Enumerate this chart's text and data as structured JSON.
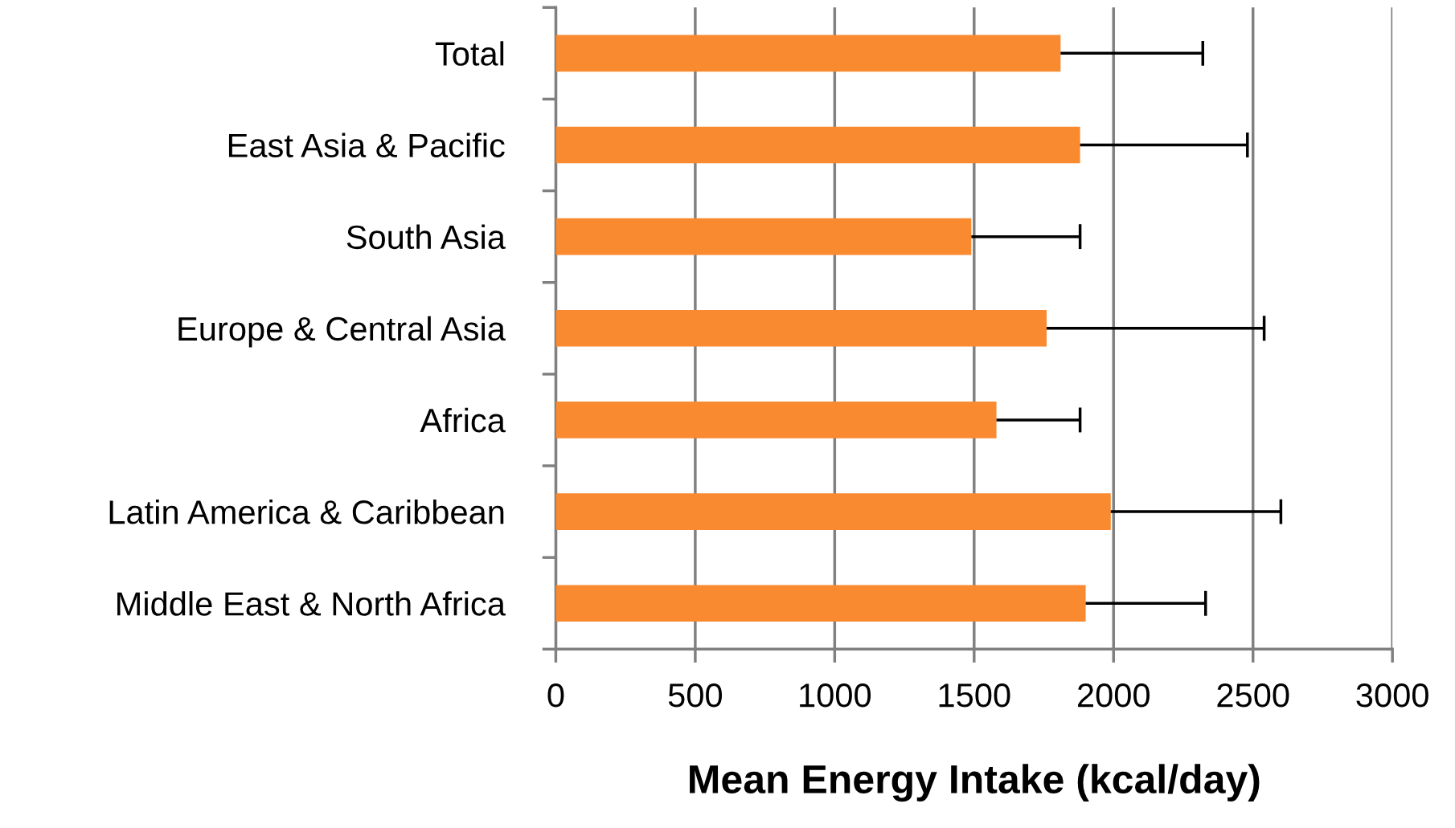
{
  "chart_data": {
    "type": "bar",
    "orientation": "horizontal",
    "xlabel": "Mean Energy Intake (kcal/day)",
    "categories": [
      "Total",
      "East Asia & Pacific",
      "South Asia",
      "Europe & Central Asia",
      "Africa",
      "Latin America & Caribbean",
      "Middle East & North Africa"
    ],
    "values": [
      1810,
      1880,
      1490,
      1760,
      1580,
      1990,
      1900
    ],
    "errors": [
      [
        1810,
        2320
      ],
      [
        1880,
        2480
      ],
      [
        1490,
        1880
      ],
      [
        1760,
        2540
      ],
      [
        1580,
        1880
      ],
      [
        1990,
        2600
      ],
      [
        1900,
        2330
      ]
    ],
    "color": "#f98a30",
    "xlim": [
      0,
      3000
    ],
    "xticks": [
      0,
      500,
      1000,
      1500,
      2000,
      2500,
      3000
    ],
    "grid": "x"
  }
}
